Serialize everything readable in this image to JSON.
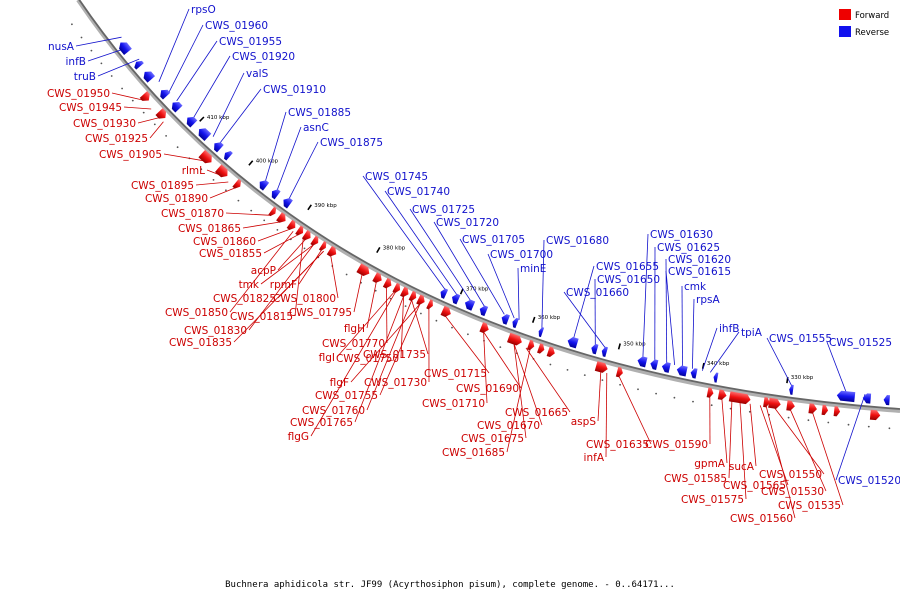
{
  "caption": "Buchnera aphidicola str. JF99 (Acyrthosiphon pisum), complete genome. - 0..64171...",
  "legend": [
    {
      "label": "Forward",
      "color": "#ee0000"
    },
    {
      "label": "Reverse",
      "color": "#1111ee"
    }
  ],
  "ticks": [
    "410 kbp",
    "400 kbp",
    "390 kbp",
    "380 kbp",
    "370 kbp",
    "360 kbp",
    "350 kbp",
    "340 kbp",
    "330 kbp"
  ],
  "reverse_labels": [
    "rpsO",
    "CWS_01960",
    "CWS_01955",
    "nusA",
    "infB",
    "CWS_01920",
    "truB",
    "valS",
    "CWS_01910",
    "CWS_01885",
    "asnC",
    "CWS_01875",
    "CWS_01745",
    "CWS_01740",
    "CWS_01725",
    "CWS_01720",
    "CWS_01705",
    "CWS_01700",
    "minE",
    "CWS_01680",
    "CWS_01655",
    "CWS_01650",
    "CWS_01660",
    "CWS_01630",
    "CWS_01625",
    "CWS_01620",
    "CWS_01615",
    "cmk",
    "rpsA",
    "ihfB",
    "tpiA",
    "CWS_01555",
    "CWS_01525",
    "CWS_01520"
  ],
  "forward_labels": [
    "CWS_01950",
    "CWS_01945",
    "CWS_01930",
    "CWS_01925",
    "CWS_01905",
    "rlmL",
    "CWS_01895",
    "CWS_01890",
    "CWS_01870",
    "CWS_01865",
    "CWS_01860",
    "CWS_01855",
    "acpP",
    "tmk",
    "rpmF",
    "CWS_01825",
    "CWS_01800",
    "CWS_01850",
    "CWS_01815",
    "CWS_01795",
    "CWS_01830",
    "CWS_01835",
    "flgH",
    "CWS_01770",
    "flgI",
    "CWS_01750",
    "CWS_01735",
    "flgF",
    "CWS_01730",
    "CWS_01755",
    "CWS_01760",
    "CWS_01765",
    "flgG",
    "CWS_01715",
    "CWS_01710",
    "CWS_01690",
    "CWS_01665",
    "CWS_01670",
    "CWS_01675",
    "CWS_01685",
    "aspS",
    "infA",
    "CWS_01635",
    "CWS_01590",
    "gpmA",
    "CWS_01585",
    "CWS_01575",
    "sucA",
    "CWS_01565",
    "CWS_01560",
    "CWS_01550",
    "CWS_01530",
    "CWS_01535"
  ]
}
